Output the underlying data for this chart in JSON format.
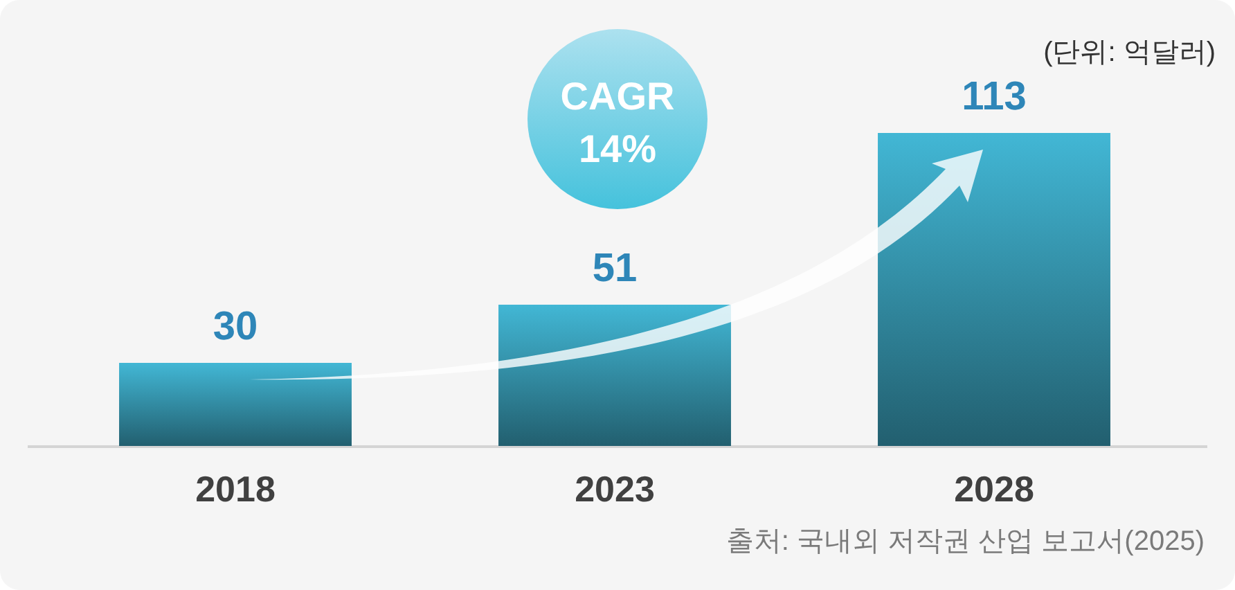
{
  "chart_data": {
    "type": "bar",
    "categories": [
      "2018",
      "2023",
      "2028"
    ],
    "values": [
      30,
      51,
      113
    ],
    "color": "#3592aa",
    "data_labels": true,
    "annotations": [
      "(단위: 억달러)",
      "CAGR 14%",
      "출처: 국내외 저작권 산업 보고서(2025)"
    ]
  }
}
